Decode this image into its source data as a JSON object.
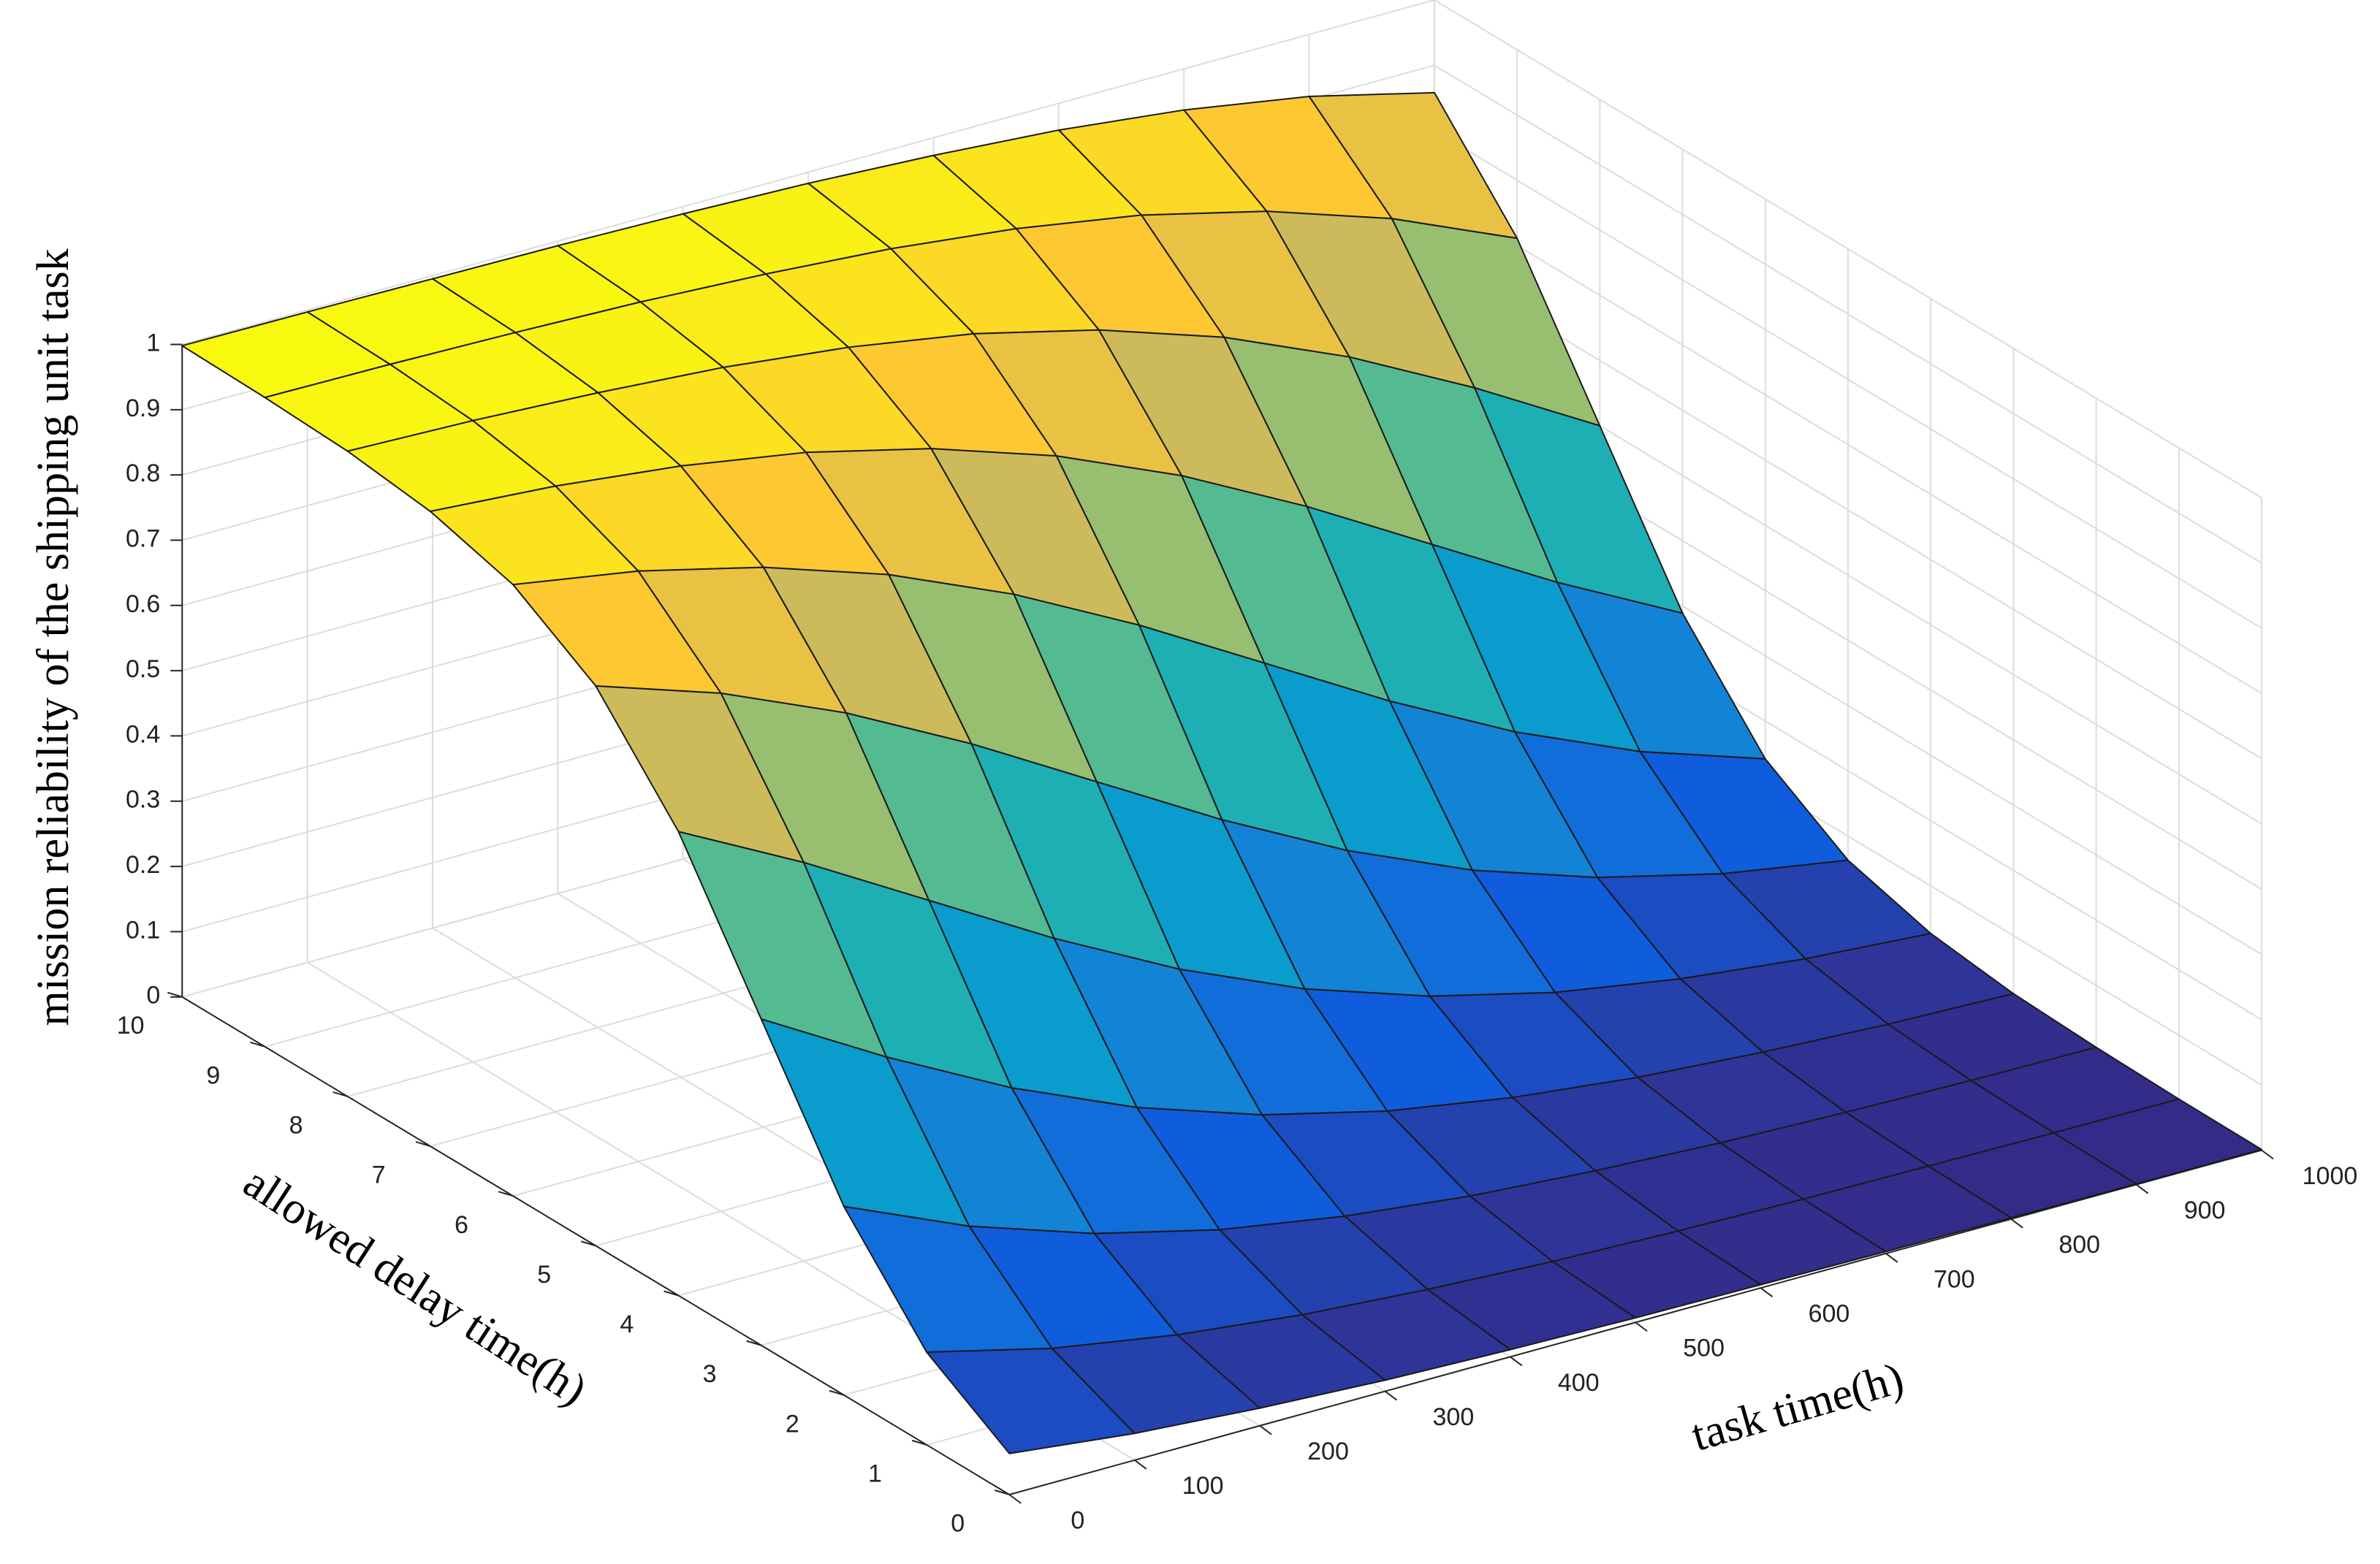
{
  "chart_data": {
    "type": "surface",
    "xlabel": "task time(h)",
    "ylabel": "allowed delay time(h)",
    "zlabel": "mission reliability of the shipping unit task",
    "x": [
      0,
      100,
      200,
      300,
      400,
      500,
      600,
      700,
      800,
      900,
      1000
    ],
    "y": [
      0,
      1,
      2,
      3,
      4,
      5,
      6,
      7,
      8,
      9,
      10
    ],
    "z": [
      [
        0.063,
        0.041,
        0.027,
        0.017,
        0.011,
        0.007,
        0.005,
        0.003,
        0.002,
        0.001,
        0.001
      ],
      [
        0.142,
        0.095,
        0.063,
        0.041,
        0.027,
        0.017,
        0.011,
        0.007,
        0.005,
        0.003,
        0.002
      ],
      [
        0.289,
        0.206,
        0.142,
        0.095,
        0.063,
        0.041,
        0.027,
        0.017,
        0.011,
        0.007,
        0.005
      ],
      [
        0.5,
        0.389,
        0.289,
        0.206,
        0.142,
        0.095,
        0.063,
        0.041,
        0.027,
        0.017,
        0.011
      ],
      [
        0.711,
        0.611,
        0.5,
        0.389,
        0.289,
        0.206,
        0.142,
        0.095,
        0.063,
        0.041,
        0.027
      ],
      [
        0.858,
        0.794,
        0.711,
        0.611,
        0.5,
        0.389,
        0.289,
        0.206,
        0.142,
        0.095,
        0.063
      ],
      [
        0.937,
        0.905,
        0.858,
        0.794,
        0.711,
        0.611,
        0.5,
        0.389,
        0.289,
        0.206,
        0.142
      ],
      [
        0.973,
        0.959,
        0.937,
        0.905,
        0.858,
        0.794,
        0.711,
        0.611,
        0.5,
        0.389,
        0.289
      ],
      [
        0.989,
        0.983,
        0.973,
        0.959,
        0.937,
        0.905,
        0.858,
        0.794,
        0.711,
        0.611,
        0.5
      ],
      [
        0.995,
        0.993,
        0.989,
        0.983,
        0.973,
        0.959,
        0.937,
        0.905,
        0.858,
        0.794,
        0.711
      ],
      [
        0.998,
        0.997,
        0.995,
        0.993,
        0.989,
        0.983,
        0.973,
        0.959,
        0.937,
        0.905,
        0.858
      ]
    ],
    "xlim": [
      0,
      1000
    ],
    "ylim": [
      0,
      10
    ],
    "zlim": [
      0,
      1
    ],
    "xticks": [
      0,
      100,
      200,
      300,
      400,
      500,
      600,
      700,
      800,
      900,
      1000
    ],
    "yticks": [
      0,
      1,
      2,
      3,
      4,
      5,
      6,
      7,
      8,
      9,
      10
    ],
    "zticks": [
      0,
      0.1,
      0.2,
      0.3,
      0.4,
      0.5,
      0.6,
      0.7,
      0.8,
      0.9,
      1
    ],
    "grid": true,
    "colormap": [
      "#352a87",
      "#0f5cdd",
      "#1481d6",
      "#06a4ca",
      "#2eb7a4",
      "#87bf77",
      "#d1bb59",
      "#fec832",
      "#f9fb0e"
    ],
    "edgecolor": "#1a1a1a"
  }
}
